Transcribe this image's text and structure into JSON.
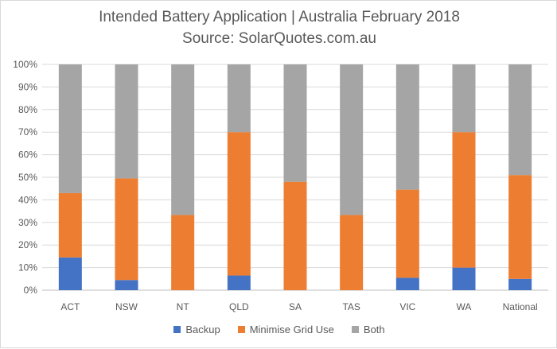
{
  "chart_data": {
    "type": "bar",
    "stacked": true,
    "title": "Intended Battery Application | Australia February 2018",
    "subtitle": "Source: SolarQuotes.com.au",
    "categories": [
      "ACT",
      "NSW",
      "NT",
      "QLD",
      "SA",
      "TAS",
      "VIC",
      "WA",
      "National"
    ],
    "series": [
      {
        "name": "Backup",
        "color": "#4472c4",
        "values": [
          14.5,
          4.5,
          0,
          6.5,
          0,
          0,
          5.5,
          10,
          5
        ]
      },
      {
        "name": "Minimise Grid Use",
        "color": "#ed7d31",
        "values": [
          28.5,
          45,
          33.3,
          63.5,
          48,
          33.3,
          39,
          60,
          46
        ]
      },
      {
        "name": "Both",
        "color": "#a5a5a5",
        "values": [
          57,
          50.5,
          66.7,
          30,
          52,
          66.7,
          55.5,
          30,
          49
        ]
      }
    ],
    "ylim": [
      0,
      100
    ],
    "yticks": [
      "0%",
      "10%",
      "20%",
      "30%",
      "40%",
      "50%",
      "60%",
      "70%",
      "80%",
      "90%",
      "100%"
    ],
    "grid": true,
    "legend": "bottom"
  }
}
